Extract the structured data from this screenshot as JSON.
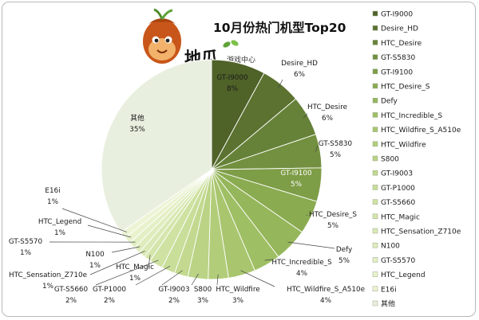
{
  "chart_data": {
    "type": "pie",
    "title": "10月份热门机型Top20",
    "categories": [
      "GT-I9000",
      "Desire_HD",
      "HTC_Desire",
      "GT-S5830",
      "GT-I9100",
      "HTC_Desire_S",
      "Defy",
      "HTC_Incredible_S",
      "HTC_Wildfire_S_A510e",
      "HTC_Wildfire",
      "S800",
      "GT-I9003",
      "GT-P1000",
      "GT-S5660",
      "HTC_Magic",
      "HTC_Sensation_Z710e",
      "N100",
      "GT-S5570",
      "HTC_Legend",
      "E16i",
      "其他"
    ],
    "values": [
      8,
      6,
      6,
      5,
      5,
      5,
      5,
      4,
      4,
      3,
      3,
      2,
      2,
      2,
      1,
      1,
      1,
      1,
      1,
      1,
      35
    ],
    "value_labels": [
      "8%",
      "6%",
      "6%",
      "5%",
      "5%",
      "5%",
      "5%",
      "4%",
      "4%",
      "3%",
      "3%",
      "2%",
      "2%",
      "2%",
      "1%",
      "1%",
      "1%",
      "1%",
      "1%",
      "1%",
      "35%"
    ],
    "colors": [
      "#4f6228",
      "#5b7230",
      "#668238",
      "#72903f",
      "#7e9d47",
      "#8aab50",
      "#95b65a",
      "#9fbf64",
      "#a9c66f",
      "#b2cd7a",
      "#bad385",
      "#c2d98f",
      "#c9de99",
      "#cfe2a2",
      "#d5e6ac",
      "#dae9b5",
      "#dfecbd",
      "#e3efc5",
      "#e8f2cd",
      "#ecf4d5",
      "#e9efdf"
    ],
    "legend": "right"
  },
  "logo": {
    "text": "地瓜",
    "subtext": "游戏中心"
  }
}
